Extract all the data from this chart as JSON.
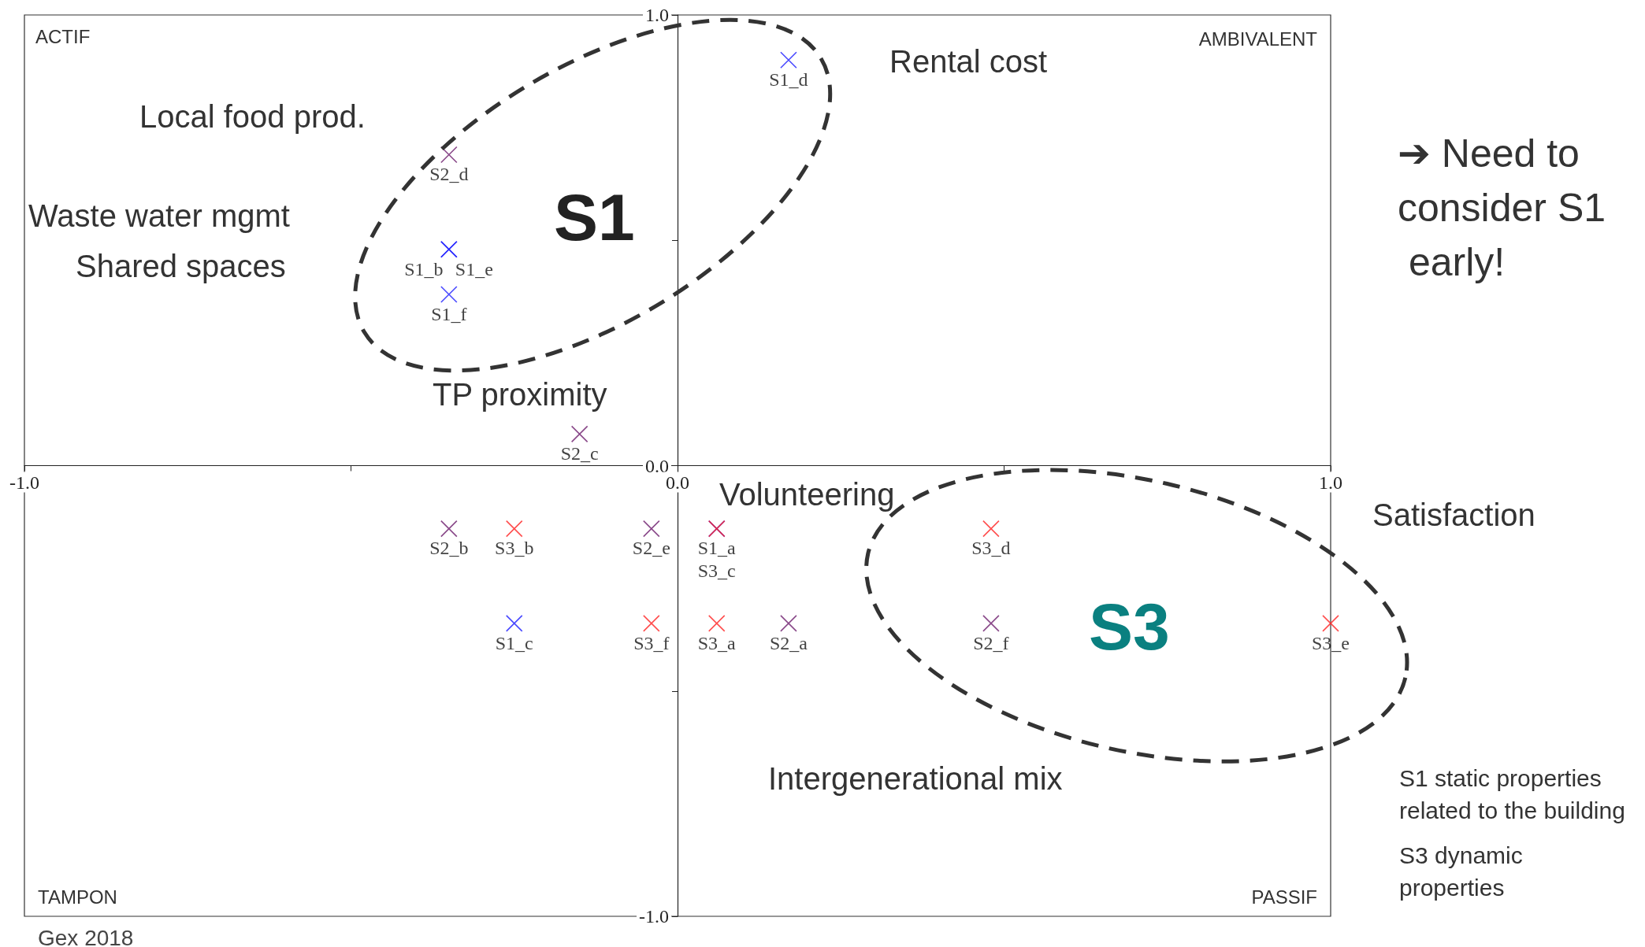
{
  "chart_data": {
    "type": "scatter",
    "marker": "cross",
    "grid": false,
    "xlim": [
      -1,
      1
    ],
    "ylim": [
      -1,
      1
    ],
    "xticks": [
      {
        "value": -1,
        "label": "-1.0"
      },
      {
        "value": -0.5,
        "label": null
      },
      {
        "value": 0,
        "label": "0.0"
      },
      {
        "value": 0.5,
        "label": null
      },
      {
        "value": 1,
        "label": "1.0"
      }
    ],
    "yticks": [
      {
        "value": -1,
        "label": "-1.0"
      },
      {
        "value": -0.5,
        "label": null
      },
      {
        "value": 0,
        "label": "0.0"
      },
      {
        "value": 0.5,
        "label": null
      },
      {
        "value": 1,
        "label": "1.0"
      }
    ],
    "series": [
      {
        "color": "#1a1aff",
        "x": [
          0.17,
          -0.35,
          -0.35,
          -0.35,
          0.06,
          -0.25
        ],
        "values": [
          0.9,
          0.48,
          0.48,
          0.38,
          -0.14,
          -0.35
        ],
        "value_labels": [
          "S1_d",
          "S1_b",
          "S1_e",
          "S1_f",
          "S1_a",
          "S1_c"
        ]
      },
      {
        "color": "#6b1a6b",
        "x": [
          -0.35,
          -0.15,
          -0.35,
          -0.04,
          0.17,
          0.48
        ],
        "values": [
          0.69,
          0.07,
          -0.14,
          -0.14,
          -0.35,
          -0.35
        ],
        "value_labels": [
          "S2_d",
          "S2_c",
          "S2_b",
          "S2_e",
          "S2_a",
          "S2_f"
        ]
      },
      {
        "color": "#ff2020",
        "x": [
          -0.25,
          0.06,
          0.48,
          -0.04,
          0.06,
          1.0
        ],
        "values": [
          -0.14,
          -0.14,
          -0.14,
          -0.35,
          -0.35,
          -0.35
        ],
        "value_labels": [
          "S3_b",
          "S3_c",
          "S3_d",
          "S3_f",
          "S3_a",
          "S3_e"
        ]
      }
    ],
    "annotations": [
      "ACTIF",
      "AMBIVALENT",
      "TAMPON",
      "PASSIF",
      "Local food prod.",
      "Waste water mgmt",
      "Shared spaces",
      "TP proximity",
      "Rental cost",
      "Volunteering",
      "Satisfaction",
      "Intergenerational mix",
      "S1",
      "S3",
      "➔ Need to consider S1 early!",
      "S1 static properties related to the building",
      "S3 dynamic properties",
      "Gex 2018"
    ]
  }
}
